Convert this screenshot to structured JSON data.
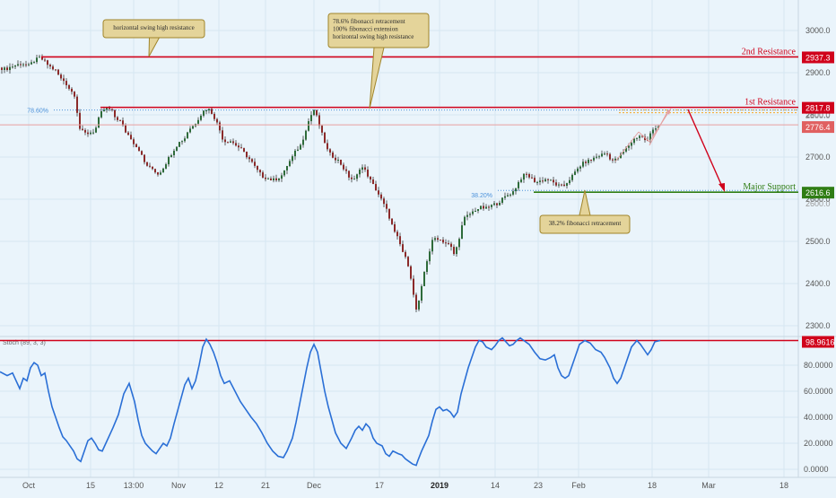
{
  "chart_data": {
    "type": "candlestick",
    "main": {
      "y_range": [
        2290,
        3080
      ],
      "y_ticks": [
        "2300.0",
        "2400.0",
        "2500.0",
        "2600.0",
        "2700.0",
        "2800.0",
        "2900.0",
        "3000.0"
      ],
      "price_series": [
        [
          0,
          2912
        ],
        [
          6,
          2908
        ],
        [
          12,
          2914
        ],
        [
          18,
          2918
        ],
        [
          25,
          2922
        ],
        [
          32,
          2916
        ],
        [
          38,
          2928
        ],
        [
          44,
          2935
        ],
        [
          48,
          2930
        ],
        [
          55,
          2915
        ],
        [
          62,
          2905
        ],
        [
          68,
          2885
        ],
        [
          72,
          2880
        ],
        [
          78,
          2860
        ],
        [
          84,
          2845
        ],
        [
          88,
          2770
        ],
        [
          92,
          2760
        ],
        [
          96,
          2755
        ],
        [
          100,
          2758
        ],
        [
          106,
          2762
        ],
        [
          110,
          2790
        ],
        [
          114,
          2810
        ],
        [
          118,
          2815
        ],
        [
          124,
          2812
        ],
        [
          128,
          2795
        ],
        [
          134,
          2785
        ],
        [
          140,
          2760
        ],
        [
          146,
          2745
        ],
        [
          150,
          2730
        ],
        [
          156,
          2715
        ],
        [
          160,
          2690
        ],
        [
          166,
          2675
        ],
        [
          170,
          2672
        ],
        [
          176,
          2660
        ],
        [
          180,
          2668
        ],
        [
          186,
          2690
        ],
        [
          190,
          2705
        ],
        [
          196,
          2725
        ],
        [
          200,
          2735
        ],
        [
          206,
          2745
        ],
        [
          210,
          2765
        ],
        [
          216,
          2775
        ],
        [
          222,
          2795
        ],
        [
          228,
          2812
        ],
        [
          232,
          2815
        ],
        [
          236,
          2805
        ],
        [
          240,
          2790
        ],
        [
          244,
          2770
        ],
        [
          248,
          2745
        ],
        [
          252,
          2735
        ],
        [
          256,
          2740
        ],
        [
          262,
          2730
        ],
        [
          268,
          2720
        ],
        [
          274,
          2705
        ],
        [
          280,
          2690
        ],
        [
          286,
          2670
        ],
        [
          292,
          2655
        ],
        [
          298,
          2650
        ],
        [
          304,
          2645
        ],
        [
          310,
          2650
        ],
        [
          316,
          2660
        ],
        [
          320,
          2680
        ],
        [
          326,
          2700
        ],
        [
          330,
          2715
        ],
        [
          336,
          2730
        ],
        [
          340,
          2760
        ],
        [
          344,
          2785
        ],
        [
          348,
          2805
        ],
        [
          350,
          2812
        ],
        [
          354,
          2790
        ],
        [
          358,
          2760
        ],
        [
          362,
          2735
        ],
        [
          366,
          2710
        ],
        [
          372,
          2700
        ],
        [
          378,
          2690
        ],
        [
          384,
          2670
        ],
        [
          390,
          2650
        ],
        [
          396,
          2645
        ],
        [
          402,
          2680
        ],
        [
          408,
          2665
        ],
        [
          414,
          2640
        ],
        [
          420,
          2620
        ],
        [
          426,
          2595
        ],
        [
          432,
          2570
        ],
        [
          436,
          2545
        ],
        [
          440,
          2520
        ],
        [
          444,
          2505
        ],
        [
          448,
          2480
        ],
        [
          452,
          2460
        ],
        [
          456,
          2440
        ],
        [
          460,
          2390
        ],
        [
          463,
          2335
        ],
        [
          466,
          2345
        ],
        [
          470,
          2390
        ],
        [
          474,
          2440
        ],
        [
          478,
          2470
        ],
        [
          482,
          2500
        ],
        [
          486,
          2510
        ],
        [
          490,
          2505
        ],
        [
          494,
          2500
        ],
        [
          498,
          2495
        ],
        [
          502,
          2490
        ],
        [
          506,
          2470
        ],
        [
          510,
          2490
        ],
        [
          514,
          2530
        ],
        [
          518,
          2555
        ],
        [
          524,
          2565
        ],
        [
          530,
          2575
        ],
        [
          536,
          2580
        ],
        [
          542,
          2578
        ],
        [
          548,
          2585
        ],
        [
          554,
          2590
        ],
        [
          560,
          2600
        ],
        [
          566,
          2610
        ],
        [
          572,
          2618
        ],
        [
          576,
          2632
        ],
        [
          580,
          2648
        ],
        [
          586,
          2660
        ],
        [
          592,
          2650
        ],
        [
          598,
          2640
        ],
        [
          604,
          2645
        ],
        [
          610,
          2648
        ],
        [
          616,
          2640
        ],
        [
          622,
          2632
        ],
        [
          628,
          2630
        ],
        [
          634,
          2645
        ],
        [
          640,
          2660
        ],
        [
          646,
          2678
        ],
        [
          652,
          2688
        ],
        [
          658,
          2692
        ],
        [
          664,
          2700
        ],
        [
          670,
          2705
        ],
        [
          676,
          2710
        ],
        [
          680,
          2698
        ],
        [
          684,
          2690
        ],
        [
          690,
          2700
        ],
        [
          696,
          2715
        ],
        [
          702,
          2730
        ],
        [
          708,
          2745
        ],
        [
          714,
          2752
        ],
        [
          718,
          2742
        ],
        [
          722,
          2738
        ],
        [
          726,
          2760
        ],
        [
          730,
          2770
        ],
        [
          736,
          2776
        ]
      ],
      "resistance_lines": [
        {
          "label": "2nd Resistance",
          "value": "2937.3",
          "y": 2937.3
        },
        {
          "label": "1st Resistance",
          "value": "2817.8",
          "y": 2817.8
        }
      ],
      "support_line": {
        "label": "Major Support",
        "value": "2616.6",
        "y": 2616.6
      },
      "last_price": {
        "value": "2776.4",
        "y": 2776.4
      },
      "fib_levels": [
        {
          "label": "78.60%",
          "y": 2817.8
        },
        {
          "label": "38.20%",
          "y": 2616.6
        }
      ],
      "annotations": [
        {
          "id": "left",
          "text": [
            "horizontal swing high resistance"
          ]
        },
        {
          "id": "center",
          "text": [
            "78.6% fibonacci retracement",
            "100% fibonacci extension",
            "horizontal swing high resistance"
          ]
        },
        {
          "id": "bottom",
          "text": [
            "38.2% fibonacci retracement"
          ]
        }
      ]
    },
    "oscillator": {
      "label": "Stoch (89, 3, 3)",
      "y_range": [
        -3,
        105
      ],
      "y_ticks": [
        "0.0000",
        "20.0000",
        "40.0000",
        "60.0000",
        "80.0000"
      ],
      "line_value": "98.9616",
      "line_y": 98.96,
      "series": [
        [
          0,
          75
        ],
        [
          8,
          72
        ],
        [
          14,
          74
        ],
        [
          18,
          68
        ],
        [
          22,
          62
        ],
        [
          26,
          70
        ],
        [
          30,
          68
        ],
        [
          34,
          78
        ],
        [
          38,
          82
        ],
        [
          42,
          80
        ],
        [
          46,
          72
        ],
        [
          50,
          74
        ],
        [
          54,
          60
        ],
        [
          58,
          48
        ],
        [
          62,
          40
        ],
        [
          66,
          32
        ],
        [
          70,
          25
        ],
        [
          74,
          22
        ],
        [
          78,
          18
        ],
        [
          82,
          14
        ],
        [
          86,
          8
        ],
        [
          90,
          6
        ],
        [
          94,
          14
        ],
        [
          98,
          22
        ],
        [
          102,
          24
        ],
        [
          106,
          20
        ],
        [
          110,
          15
        ],
        [
          114,
          14
        ],
        [
          118,
          20
        ],
        [
          122,
          26
        ],
        [
          126,
          32
        ],
        [
          132,
          42
        ],
        [
          138,
          58
        ],
        [
          144,
          66
        ],
        [
          150,
          52
        ],
        [
          154,
          38
        ],
        [
          158,
          26
        ],
        [
          162,
          20
        ],
        [
          166,
          17
        ],
        [
          170,
          14
        ],
        [
          174,
          12
        ],
        [
          178,
          16
        ],
        [
          182,
          20
        ],
        [
          186,
          18
        ],
        [
          190,
          24
        ],
        [
          194,
          35
        ],
        [
          198,
          45
        ],
        [
          202,
          55
        ],
        [
          206,
          65
        ],
        [
          210,
          70
        ],
        [
          214,
          62
        ],
        [
          218,
          68
        ],
        [
          222,
          80
        ],
        [
          226,
          94
        ],
        [
          230,
          100
        ],
        [
          234,
          96
        ],
        [
          238,
          90
        ],
        [
          242,
          82
        ],
        [
          246,
          72
        ],
        [
          250,
          66
        ],
        [
          256,
          68
        ],
        [
          262,
          60
        ],
        [
          268,
          52
        ],
        [
          274,
          46
        ],
        [
          280,
          40
        ],
        [
          286,
          35
        ],
        [
          292,
          28
        ],
        [
          298,
          20
        ],
        [
          304,
          14
        ],
        [
          310,
          10
        ],
        [
          316,
          9
        ],
        [
          320,
          14
        ],
        [
          326,
          24
        ],
        [
          330,
          36
        ],
        [
          334,
          50
        ],
        [
          338,
          64
        ],
        [
          342,
          78
        ],
        [
          346,
          90
        ],
        [
          350,
          96
        ],
        [
          354,
          90
        ],
        [
          358,
          75
        ],
        [
          362,
          60
        ],
        [
          366,
          48
        ],
        [
          370,
          38
        ],
        [
          374,
          28
        ],
        [
          380,
          20
        ],
        [
          386,
          16
        ],
        [
          392,
          24
        ],
        [
          396,
          30
        ],
        [
          400,
          33
        ],
        [
          404,
          30
        ],
        [
          408,
          35
        ],
        [
          412,
          32
        ],
        [
          416,
          24
        ],
        [
          420,
          20
        ],
        [
          426,
          18
        ],
        [
          430,
          12
        ],
        [
          434,
          10
        ],
        [
          438,
          14
        ],
        [
          444,
          12
        ],
        [
          448,
          11
        ],
        [
          452,
          8
        ],
        [
          456,
          6
        ],
        [
          460,
          4
        ],
        [
          464,
          3
        ],
        [
          466,
          7
        ],
        [
          470,
          14
        ],
        [
          474,
          20
        ],
        [
          478,
          26
        ],
        [
          482,
          37
        ],
        [
          486,
          46
        ],
        [
          490,
          48
        ],
        [
          494,
          45
        ],
        [
          498,
          46
        ],
        [
          502,
          44
        ],
        [
          506,
          40
        ],
        [
          510,
          44
        ],
        [
          514,
          58
        ],
        [
          518,
          68
        ],
        [
          522,
          78
        ],
        [
          526,
          86
        ],
        [
          530,
          94
        ],
        [
          534,
          99
        ],
        [
          538,
          98
        ],
        [
          542,
          94
        ],
        [
          548,
          92
        ],
        [
          552,
          95
        ],
        [
          556,
          99
        ],
        [
          560,
          101
        ],
        [
          564,
          98
        ],
        [
          568,
          95
        ],
        [
          572,
          96
        ],
        [
          576,
          99
        ],
        [
          580,
          101
        ],
        [
          584,
          99
        ],
        [
          590,
          96
        ],
        [
          596,
          90
        ],
        [
          602,
          85
        ],
        [
          608,
          84
        ],
        [
          614,
          86
        ],
        [
          618,
          88
        ],
        [
          622,
          78
        ],
        [
          626,
          72
        ],
        [
          630,
          70
        ],
        [
          634,
          72
        ],
        [
          640,
          84
        ],
        [
          646,
          96
        ],
        [
          652,
          99
        ],
        [
          658,
          97
        ],
        [
          664,
          92
        ],
        [
          670,
          90
        ],
        [
          674,
          86
        ],
        [
          680,
          78
        ],
        [
          684,
          70
        ],
        [
          688,
          66
        ],
        [
          692,
          70
        ],
        [
          698,
          82
        ],
        [
          704,
          94
        ],
        [
          710,
          99
        ],
        [
          714,
          96
        ],
        [
          718,
          92
        ],
        [
          722,
          88
        ],
        [
          726,
          92
        ],
        [
          730,
          98
        ],
        [
          736,
          99
        ]
      ]
    },
    "x_ticks": [
      "Oct",
      "15",
      "13:00",
      "Nov",
      "12",
      "21",
      "Dec",
      "17",
      "2019",
      "14",
      "23",
      "Feb",
      "18",
      "Mar",
      "18"
    ],
    "colors": {
      "background": "#eaf4fb",
      "resistance": "#d0021b",
      "support": "#2f7d14",
      "last_price": "#c62828",
      "fib": "#4a90d9",
      "fib_zone": "#f5a623",
      "stoch_line": "#2a6fd6",
      "candle_up": "#2e6b3a",
      "candle_down": "#8b2a2a",
      "annotation_fill": "#e4d49a",
      "annotation_border": "#a0852a"
    }
  }
}
